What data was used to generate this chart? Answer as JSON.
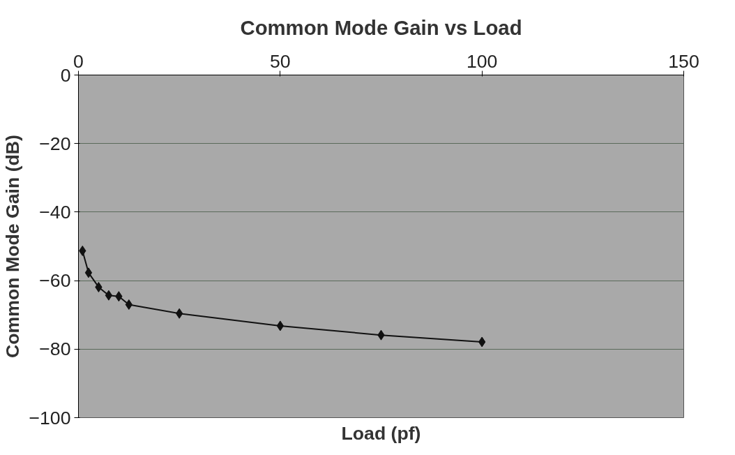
{
  "chart_data": {
    "type": "line",
    "title": "Common Mode Gain vs Load",
    "xlabel": "Load (pf)",
    "ylabel": "Common Mode Gain (dB)",
    "series": [
      {
        "color": "#111111",
        "x": [
          1,
          2.5,
          5,
          7.5,
          10,
          12.5,
          25,
          50,
          75,
          100
        ],
        "values": [
          -51.3,
          -57.7,
          -61.9,
          -64.3,
          -64.6,
          -67,
          -69.6,
          -73.2,
          -75.9,
          -77.9
        ]
      }
    ],
    "xlim": [
      0,
      150
    ],
    "xticks": [
      0,
      50,
      100,
      150
    ],
    "ylim": [
      -100,
      0
    ],
    "yticks": [
      -100,
      -80,
      -60,
      -40,
      -20,
      0
    ],
    "grid": "y",
    "marker": "diamond"
  }
}
